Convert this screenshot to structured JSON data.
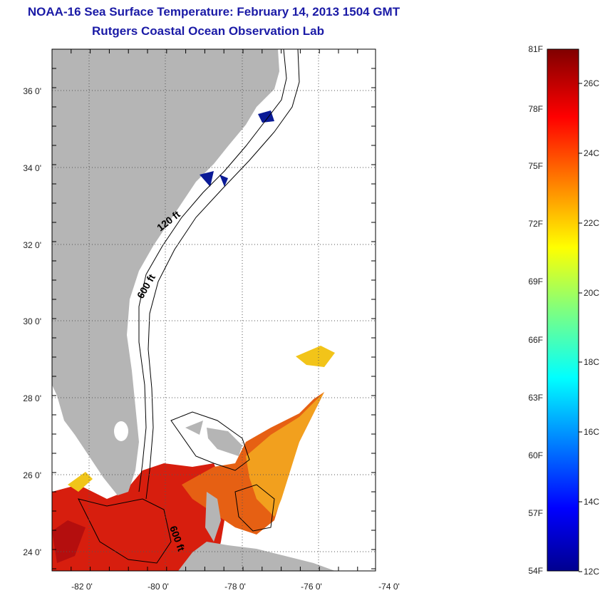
{
  "header": {
    "title": "NOAA-16 Sea Surface Temperature:  February 14, 2013 1504 GMT",
    "subtitle": "Rutgers Coastal Ocean Observation Lab"
  },
  "map": {
    "lon_ticks": [
      "-82 0'",
      "-80 0'",
      "-78 0'",
      "-76 0'",
      "-74 0'"
    ],
    "lat_ticks": [
      "36 0'",
      "34 0'",
      "32 0'",
      "30 0'",
      "28 0'",
      "26 0'",
      "24 0'"
    ],
    "contour_labels": [
      "120 ft",
      "600 ft",
      "600 ft"
    ],
    "colors": {
      "land": "#b5b5b5",
      "frame": "#000000",
      "grid": "#555555"
    }
  },
  "colorbar": {
    "fahrenheit_labels": [
      "81F",
      "78F",
      "75F",
      "72F",
      "69F",
      "66F",
      "63F",
      "60F",
      "57F",
      "54F"
    ],
    "celsius_labels": [
      "26C",
      "24C",
      "22C",
      "20C",
      "18C",
      "16C",
      "14C",
      "12C"
    ],
    "range_c": [
      12,
      27.2
    ],
    "colormap": "jet"
  }
}
